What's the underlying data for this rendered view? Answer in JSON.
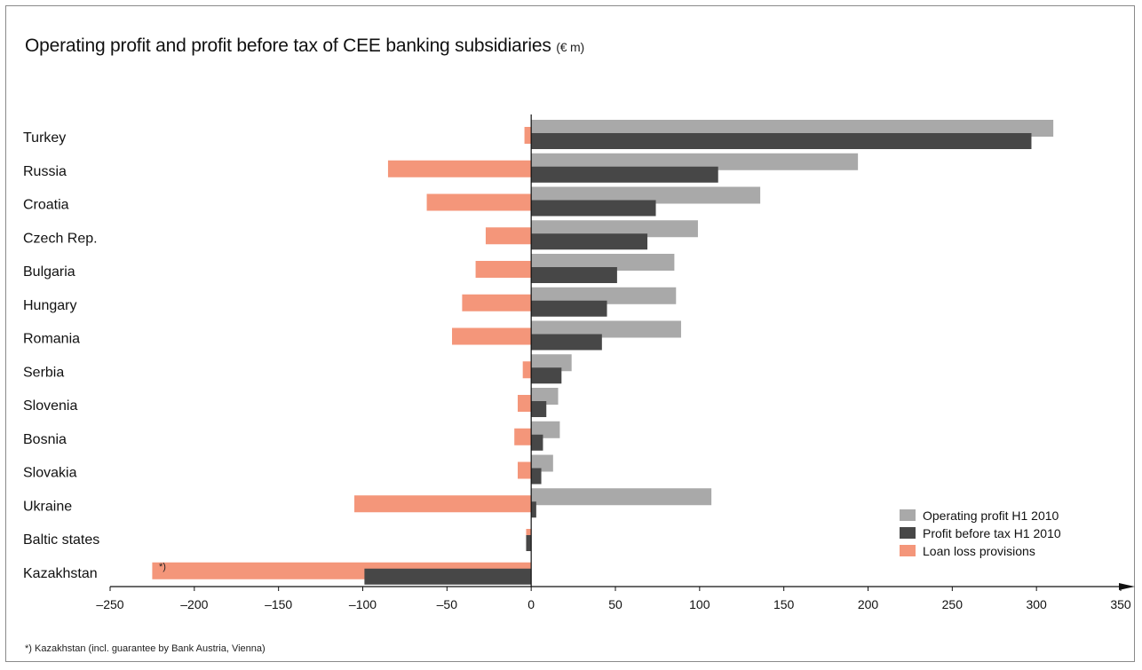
{
  "title": "Operating profit and profit before tax of CEE banking subsidiaries",
  "title_unit": "(€ m)",
  "footnote": "*) Kazakhstan (incl. guarantee by Bank Austria, Vienna)",
  "colors": {
    "operating": "#a9a9a9",
    "pbt": "#474747",
    "llp": "#f4967a",
    "axis": "#111111"
  },
  "chart_data": {
    "type": "bar",
    "orientation": "horizontal",
    "categories": [
      "Turkey",
      "Russia",
      "Croatia",
      "Czech Rep.",
      "Bulgaria",
      "Hungary",
      "Romania",
      "Serbia",
      "Slovenia",
      "Bosnia",
      "Slovakia",
      "Ukraine",
      "Baltic states",
      "Kazakhstan"
    ],
    "series": [
      {
        "name": "Operating profit H1 2010",
        "color": "#a9a9a9",
        "values": [
          310,
          194,
          136,
          99,
          85,
          86,
          89,
          24,
          16,
          17,
          13,
          107,
          0,
          0
        ]
      },
      {
        "name": "Profit before tax H1 2010",
        "color": "#474747",
        "values": [
          297,
          111,
          74,
          69,
          51,
          45,
          42,
          18,
          9,
          7,
          6,
          3,
          -3,
          -99
        ]
      },
      {
        "name": "Loan loss provisions",
        "color": "#f4967a",
        "values": [
          -4,
          -85,
          -62,
          -27,
          -33,
          -41,
          -47,
          -5,
          -8,
          -10,
          -8,
          -105,
          -3,
          -225
        ]
      }
    ],
    "annotation": {
      "category": "Kazakhstan",
      "series": "Loan loss provisions",
      "text": "*)"
    },
    "xlim": [
      -250,
      350
    ],
    "xticks": [
      -250,
      -200,
      -150,
      -100,
      -50,
      0,
      50,
      100,
      150,
      200,
      250,
      300,
      350
    ],
    "xtick_labels": [
      "–250",
      "–200",
      "–150",
      "–100",
      "–50",
      "0",
      "50",
      "100",
      "150",
      "200",
      "250",
      "300",
      "350"
    ],
    "legend_position": "bottom-right",
    "grid": false
  }
}
